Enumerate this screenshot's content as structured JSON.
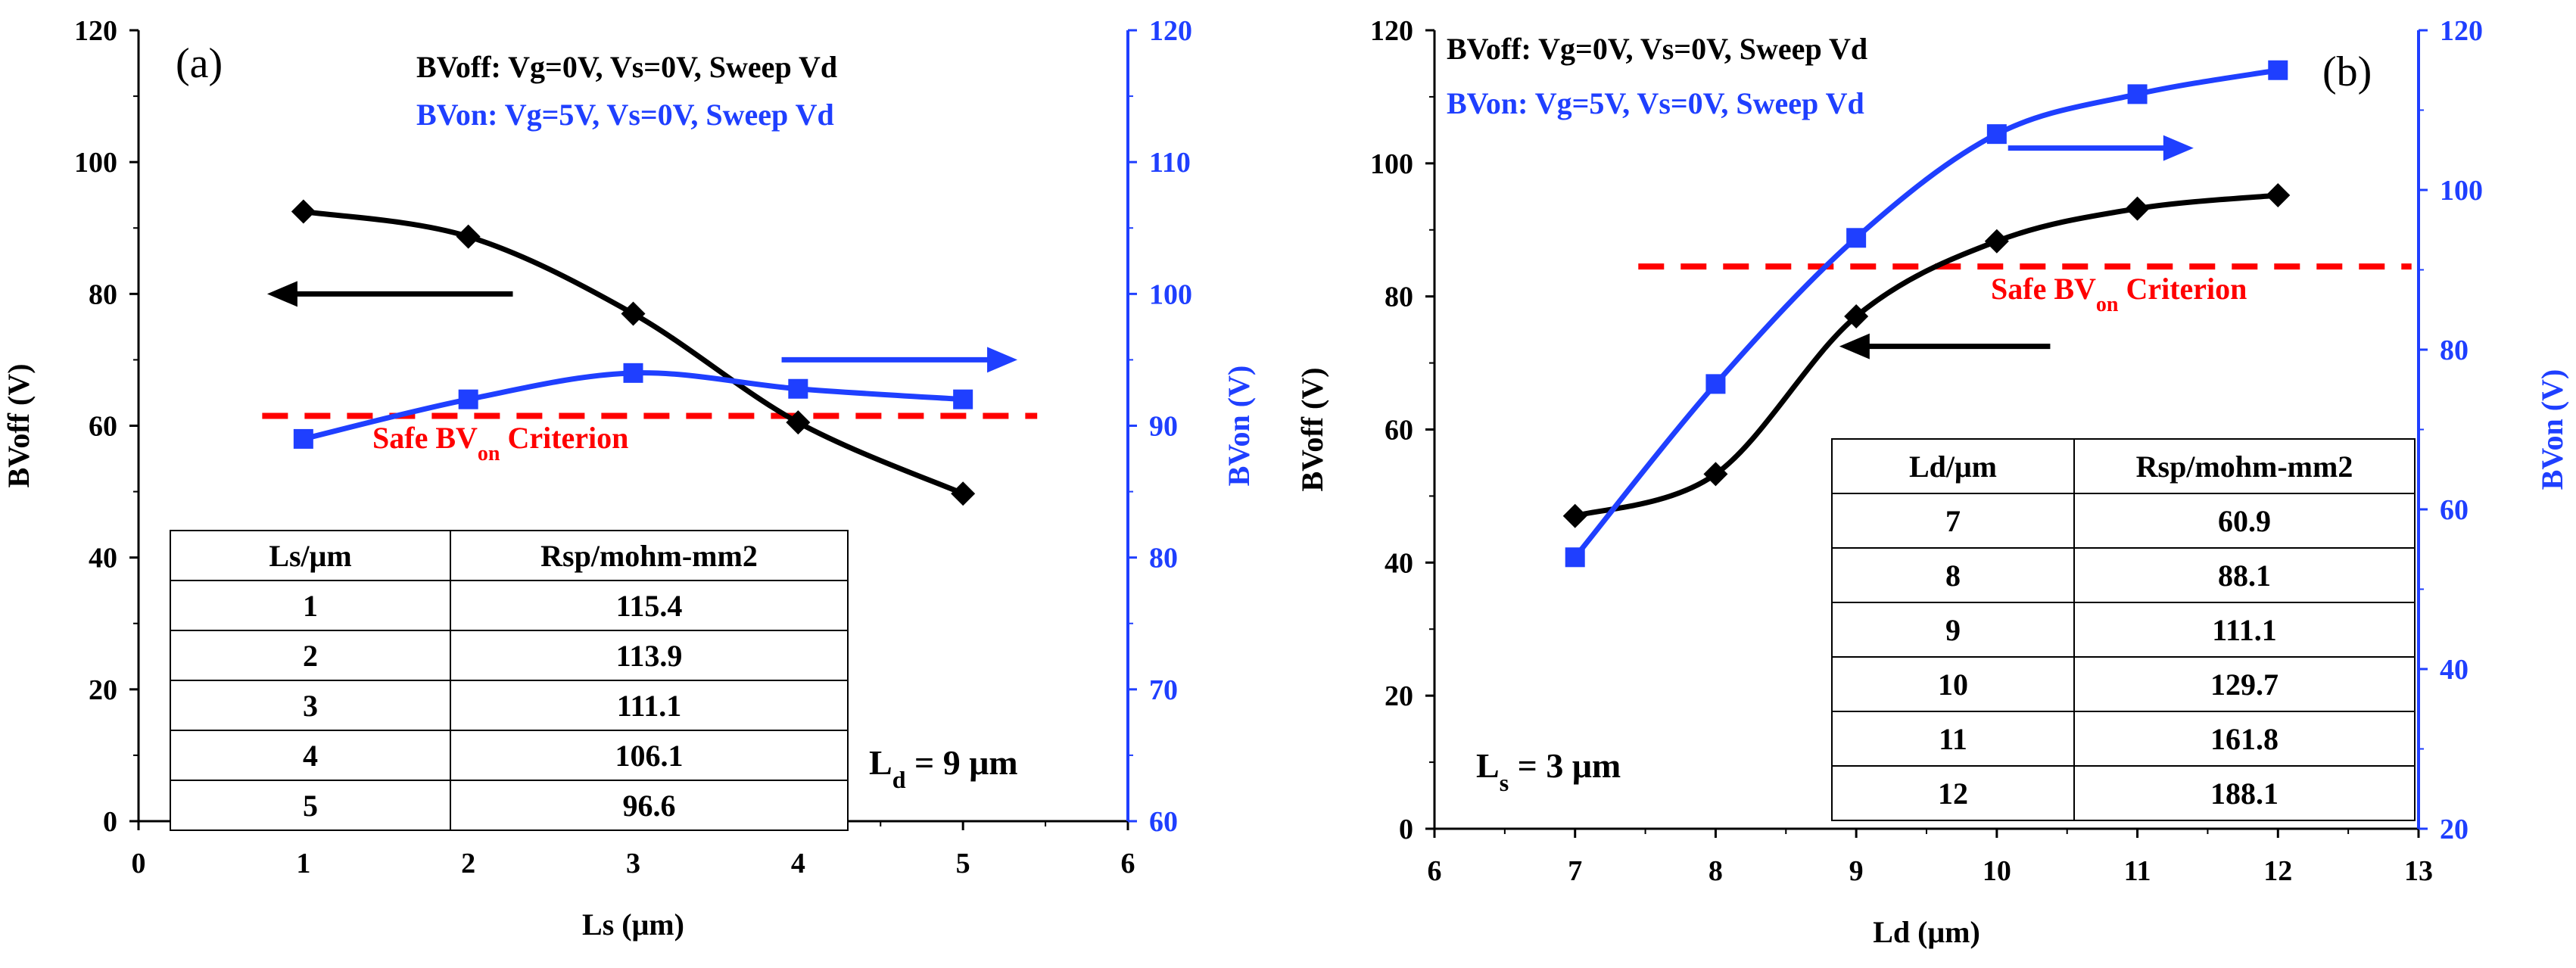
{
  "chart_data": [
    {
      "type": "line",
      "panel_label": "(a)",
      "xlabel": "Ls (μm)",
      "ylabel_left": "BVoff (V)",
      "ylabel_right": "BVon (V)",
      "xlim": [
        0,
        6
      ],
      "ylim_left": [
        0,
        120
      ],
      "ylim_right": [
        60,
        120
      ],
      "x_ticks": [
        "0",
        "1",
        "2",
        "3",
        "4",
        "5",
        "6"
      ],
      "y_left_ticks": [
        "0",
        "20",
        "40",
        "60",
        "80",
        "100",
        "120"
      ],
      "y_right_ticks": [
        "60",
        "70",
        "80",
        "90",
        "100",
        "110",
        "120"
      ],
      "legend": [
        {
          "text": "BVoff: Vg=0V, Vs=0V, Sweep Vd",
          "color": "#000000"
        },
        {
          "text": "BVon: Vg=5V, Vs=0V, Sweep Vd",
          "color": "#1f3fff"
        }
      ],
      "series": [
        {
          "axis": "left",
          "marker": "diamond",
          "color": "#000000",
          "x": [
            1,
            2,
            3,
            4,
            5
          ],
          "values": [
            92.5,
            88.7,
            77.0,
            60.5,
            49.7
          ]
        },
        {
          "axis": "right",
          "marker": "square",
          "color": "#1f3fff",
          "x": [
            1,
            2,
            3,
            4,
            5
          ],
          "values": [
            89.0,
            92.0,
            94.0,
            92.8,
            92.0
          ]
        }
      ],
      "criterion": {
        "label_main": "Safe BV",
        "label_sub": "on",
        "label_tail": " Criterion",
        "axis": "left",
        "value": 61.5,
        "x_range": [
          0.75,
          5.45
        ],
        "color": "#ff0000"
      },
      "arrows": [
        {
          "color": "#000000",
          "direction": "left",
          "axis": "left",
          "y": 80,
          "x_from": 2.27,
          "x_to": 0.78
        },
        {
          "color": "#1f3fff",
          "direction": "right",
          "axis": "left",
          "y": 70,
          "x_from": 3.9,
          "x_to": 5.33
        }
      ],
      "table": {
        "headers": [
          "Ls/μm",
          "Rsp/mohm-mm2"
        ],
        "rows": [
          [
            "1",
            "115.4"
          ],
          [
            "2",
            "113.9"
          ],
          [
            "3",
            "111.1"
          ],
          [
            "4",
            "106.1"
          ],
          [
            "5",
            "96.6"
          ]
        ]
      },
      "annotation": {
        "main": "L",
        "sub": "d",
        "tail": " = 9 μm"
      }
    },
    {
      "type": "line",
      "panel_label": "(b)",
      "xlabel": "Ld (μm)",
      "ylabel_left": "BVoff (V)",
      "ylabel_right": "BVon (V)",
      "xlim": [
        6,
        13
      ],
      "ylim_left": [
        0,
        120
      ],
      "ylim_right": [
        20,
        120
      ],
      "x_ticks": [
        "6",
        "7",
        "8",
        "9",
        "10",
        "11",
        "12",
        "13"
      ],
      "y_left_ticks": [
        "0",
        "20",
        "40",
        "60",
        "80",
        "100",
        "120"
      ],
      "y_right_ticks": [
        "20",
        "40",
        "60",
        "80",
        "100",
        "120"
      ],
      "legend": [
        {
          "text": "BVoff: Vg=0V, Vs=0V, Sweep Vd",
          "color": "#000000"
        },
        {
          "text": "BVon: Vg=5V, Vs=0V, Sweep Vd",
          "color": "#1f3fff"
        }
      ],
      "series": [
        {
          "axis": "left",
          "marker": "diamond",
          "color": "#000000",
          "x": [
            7,
            8,
            9,
            10,
            11,
            12
          ],
          "values": [
            47.0,
            53.3,
            77.0,
            88.3,
            93.2,
            95.2
          ]
        },
        {
          "axis": "right",
          "marker": "square",
          "color": "#1f3fff",
          "x": [
            7,
            8,
            9,
            10,
            11,
            12
          ],
          "values": [
            54.0,
            75.7,
            94.0,
            107.0,
            112.0,
            115.0
          ]
        }
      ],
      "criterion": {
        "label_main": "Safe BV",
        "label_sub": "on",
        "label_tail": " Criterion",
        "axis": "left",
        "value": 84.5,
        "x_range": [
          7.45,
          12.95
        ],
        "color": "#ff0000"
      },
      "arrows": [
        {
          "color": "#000000",
          "direction": "left",
          "axis": "left",
          "y": 72.5,
          "x_from": 10.38,
          "x_to": 8.88
        },
        {
          "color": "#1f3fff",
          "direction": "right",
          "axis": "left",
          "y": 102.3,
          "x_from": 10.08,
          "x_to": 11.4
        }
      ],
      "table": {
        "headers": [
          "Ld/μm",
          "Rsp/mohm-mm2"
        ],
        "rows": [
          [
            "7",
            "60.9"
          ],
          [
            "8",
            "88.1"
          ],
          [
            "9",
            "111.1"
          ],
          [
            "10",
            "129.7"
          ],
          [
            "11",
            "161.8"
          ],
          [
            "12",
            "188.1"
          ]
        ]
      },
      "annotation": {
        "main": "L",
        "sub": "s",
        "tail": " = 3 μm"
      }
    }
  ]
}
